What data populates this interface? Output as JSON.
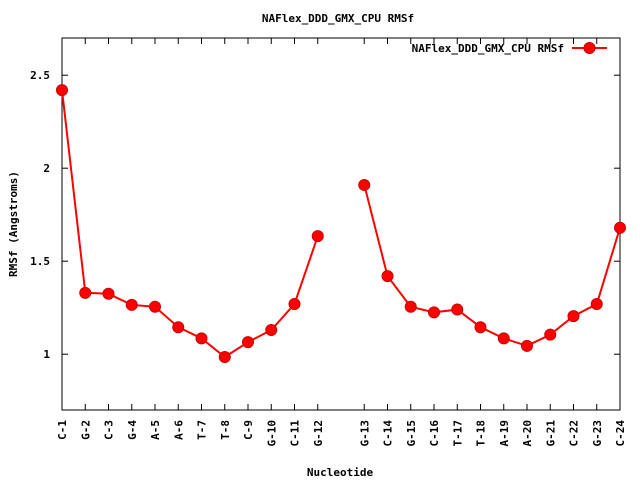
{
  "chart_data": {
    "type": "line",
    "title": "NAFlex_DDD_GMX_CPU RMSf",
    "xlabel": "Nucleotide",
    "ylabel": "RMSf (Angstroms)",
    "ylim": [
      0.7,
      2.7
    ],
    "yticks": [
      1,
      1.5,
      2,
      2.5
    ],
    "ytick_labels": [
      "1",
      "1.5",
      "2",
      "2.5"
    ],
    "grid": false,
    "legend_position": "top-right",
    "colors": {
      "series": "#ff0000",
      "marker_edge": "#cc0000"
    },
    "categories": [
      "C-1",
      "G-2",
      "C-3",
      "G-4",
      "A-5",
      "A-6",
      "T-7",
      "T-8",
      "C-9",
      "G-10",
      "C-11",
      "G-12",
      "G-13",
      "C-14",
      "G-15",
      "C-16",
      "T-17",
      "T-18",
      "A-19",
      "A-20",
      "G-21",
      "C-22",
      "G-23",
      "C-24"
    ],
    "x": [
      1,
      2,
      3,
      4,
      5,
      6,
      7,
      8,
      9,
      10,
      11,
      12,
      14,
      15,
      16,
      17,
      18,
      19,
      20,
      21,
      22,
      23,
      24,
      25
    ],
    "xlim": [
      1,
      25
    ],
    "series": [
      {
        "name": "NAFlex_DDD_GMX_CPU RMSf",
        "segments": [
          [
            2.42,
            1.33,
            1.325,
            1.265,
            1.255,
            1.145,
            1.085,
            0.985,
            1.065,
            1.13,
            1.27,
            1.635
          ],
          [
            1.91,
            1.42,
            1.255,
            1.225,
            1.24,
            1.145,
            1.085,
            1.045,
            1.105,
            1.205,
            1.27,
            1.68
          ]
        ],
        "values": [
          2.42,
          1.33,
          1.325,
          1.265,
          1.255,
          1.145,
          1.085,
          0.985,
          1.065,
          1.13,
          1.27,
          1.635,
          1.91,
          1.42,
          1.255,
          1.225,
          1.24,
          1.145,
          1.085,
          1.045,
          1.105,
          1.205,
          1.27,
          1.68
        ]
      }
    ]
  }
}
